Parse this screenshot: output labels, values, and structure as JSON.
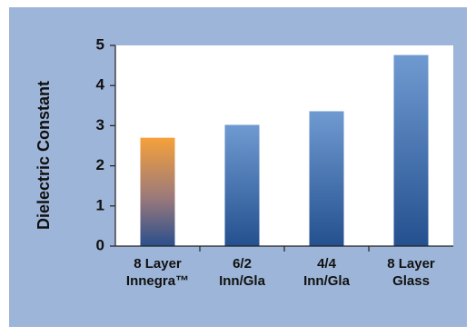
{
  "colors": {
    "frame_background": "#9db5d8",
    "plot_background": "#ffffff",
    "bar_blue_top": "#6f9ad1",
    "bar_blue_bottom": "#24508f",
    "bar_orange_top": "#f6a13a",
    "bar_orange_bottom": "#2a4f8c"
  },
  "chart_data": {
    "type": "bar",
    "title": "",
    "xlabel": "",
    "ylabel": "Dielectric Constant",
    "ylim": [
      0,
      5
    ],
    "yticks": [
      "0",
      "1",
      "2",
      "3",
      "4",
      "5"
    ],
    "categories": [
      [
        "8 Layer",
        "Innegra™"
      ],
      [
        "6/2",
        "Inn/Gla"
      ],
      [
        "4/4",
        "Inn/Gla"
      ],
      [
        "8 Layer",
        "Glass"
      ]
    ],
    "values": [
      2.7,
      3.02,
      3.36,
      4.76
    ],
    "bar_colors": [
      "orange",
      "blue",
      "blue",
      "blue"
    ],
    "grid": false,
    "legend": "none"
  }
}
